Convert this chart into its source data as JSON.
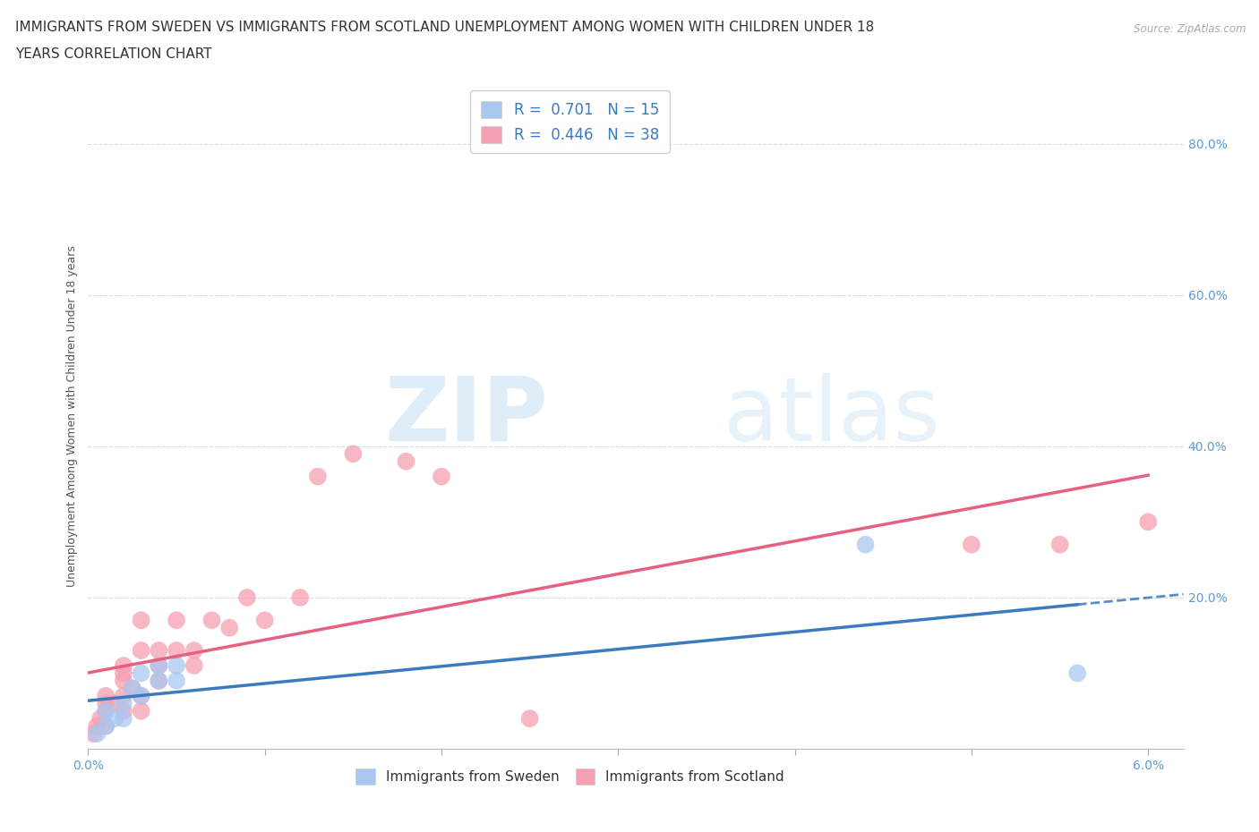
{
  "title_line1": "IMMIGRANTS FROM SWEDEN VS IMMIGRANTS FROM SCOTLAND UNEMPLOYMENT AMONG WOMEN WITH CHILDREN UNDER 18",
  "title_line2": "YEARS CORRELATION CHART",
  "source": "Source: ZipAtlas.com",
  "ylabel_label": "Unemployment Among Women with Children Under 18 years",
  "xlim": [
    0.0,
    0.062
  ],
  "ylim": [
    0.0,
    0.88
  ],
  "x_ticks": [
    0.0,
    0.01,
    0.02,
    0.03,
    0.04,
    0.05,
    0.06
  ],
  "x_tick_labels": [
    "0.0%",
    "",
    "",
    "",
    "",
    "",
    "6.0%"
  ],
  "y_ticks": [
    0.0,
    0.2,
    0.4,
    0.6,
    0.8
  ],
  "y_tick_labels": [
    "",
    "20.0%",
    "40.0%",
    "60.0%",
    "80.0%"
  ],
  "sweden_color": "#a8c8f0",
  "scotland_color": "#f5a0b0",
  "trend_sweden_color": "#3c7abf",
  "trend_scotland_color": "#e86080",
  "watermark_zip": "ZIP",
  "watermark_atlas": "atlas",
  "R_sweden": 0.701,
  "N_sweden": 15,
  "R_scotland": 0.446,
  "N_scotland": 38,
  "sweden_x": [
    0.0005,
    0.001,
    0.001,
    0.0015,
    0.002,
    0.002,
    0.0025,
    0.003,
    0.003,
    0.004,
    0.004,
    0.005,
    0.005,
    0.044,
    0.056
  ],
  "sweden_y": [
    0.02,
    0.03,
    0.05,
    0.04,
    0.04,
    0.06,
    0.08,
    0.07,
    0.1,
    0.09,
    0.11,
    0.09,
    0.11,
    0.27,
    0.1
  ],
  "scotland_x": [
    0.0003,
    0.0005,
    0.0007,
    0.001,
    0.001,
    0.001,
    0.001,
    0.0015,
    0.002,
    0.002,
    0.002,
    0.002,
    0.002,
    0.0025,
    0.003,
    0.003,
    0.003,
    0.003,
    0.004,
    0.004,
    0.004,
    0.005,
    0.005,
    0.006,
    0.006,
    0.007,
    0.008,
    0.009,
    0.01,
    0.012,
    0.013,
    0.015,
    0.018,
    0.02,
    0.025,
    0.05,
    0.055,
    0.06
  ],
  "scotland_y": [
    0.02,
    0.03,
    0.04,
    0.03,
    0.05,
    0.06,
    0.07,
    0.06,
    0.05,
    0.07,
    0.09,
    0.1,
    0.11,
    0.08,
    0.05,
    0.07,
    0.13,
    0.17,
    0.09,
    0.11,
    0.13,
    0.13,
    0.17,
    0.11,
    0.13,
    0.17,
    0.16,
    0.2,
    0.17,
    0.2,
    0.36,
    0.39,
    0.38,
    0.36,
    0.04,
    0.27,
    0.27,
    0.3
  ],
  "background_color": "#ffffff",
  "grid_color": "#cccccc",
  "title_fontsize": 11,
  "axis_label_fontsize": 9,
  "tick_fontsize": 10,
  "legend_fontsize": 12
}
